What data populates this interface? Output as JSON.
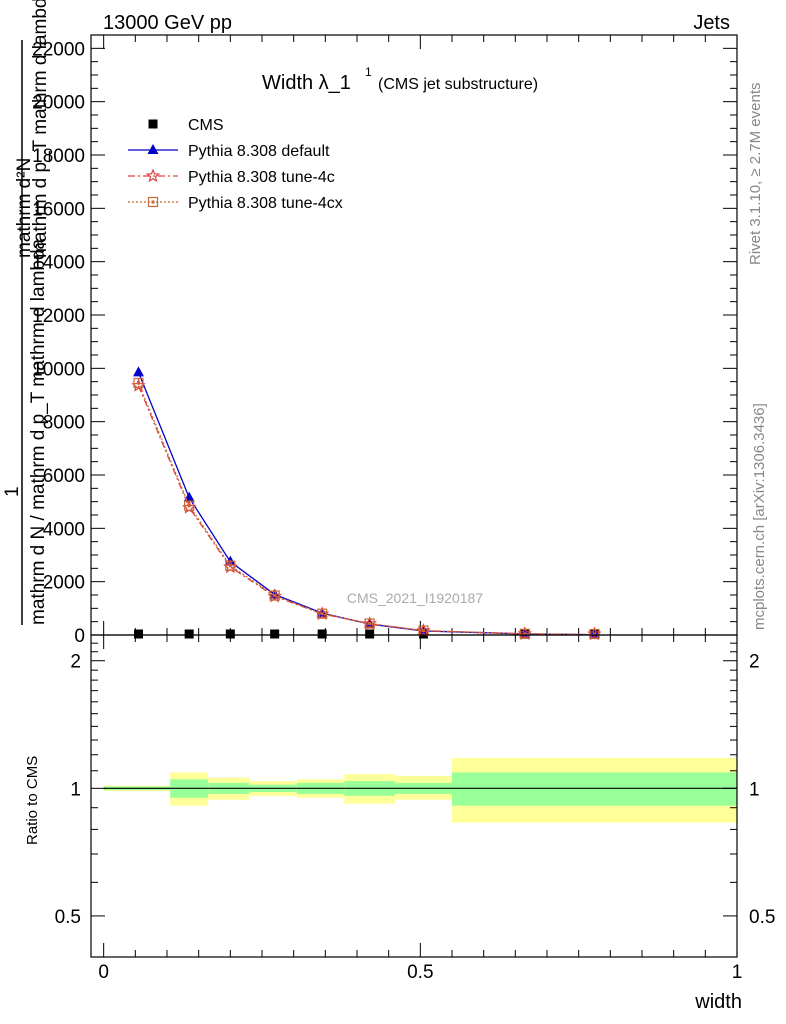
{
  "header": {
    "left": "13000 GeV pp",
    "right": "Jets"
  },
  "side_labels": {
    "rivet": "Rivet 3.1.10, ≥ 2.7M events",
    "mcplots": "mcplots.cern.ch [arXiv:1306.3436]"
  },
  "chart_data": [
    {
      "type": "line",
      "title": "Width λ_1",
      "title_sup": "1",
      "subtitle": "(CMS jet substructure)",
      "watermark": "CMS_2021_I1920187",
      "ylabel_top": "mathrm d²N",
      "ylabel_top_sub": "mathrm d p_T mathrm d lambda",
      "ylabel_bottom_num": "1",
      "ylabel_bottom_den": "mathrm d N / mathrm d p_T mathrm d lambda",
      "xlim": [
        -0.02,
        1.0
      ],
      "ylim": [
        0,
        22500
      ],
      "yticks": [
        0,
        2000,
        4000,
        6000,
        8000,
        10000,
        12000,
        14000,
        16000,
        18000,
        20000,
        22000
      ],
      "ytick_labels": [
        "0",
        "2000",
        "4000",
        "6000",
        "8000",
        "10000",
        "12000",
        "14000",
        "16000",
        "18000",
        "20000",
        "22000"
      ],
      "legend_position": "top-left",
      "series": [
        {
          "name": "CMS",
          "color": "#000000",
          "marker": "square",
          "x": [
            0.055,
            0.135,
            0.2,
            0.27,
            0.345,
            0.42,
            0.505,
            0.665,
            0.775
          ],
          "y": [
            0,
            0,
            0,
            0,
            0,
            0,
            0,
            0,
            0
          ]
        },
        {
          "name": "Pythia 8.308 default",
          "color": "#0000cc",
          "marker": "triangle",
          "x": [
            0.055,
            0.135,
            0.2,
            0.27,
            0.345,
            0.42,
            0.505,
            0.665,
            0.775
          ],
          "y": [
            9850,
            5150,
            2750,
            1520,
            820,
            410,
            150,
            40,
            10
          ]
        },
        {
          "name": "Pythia 8.308 tune-4c",
          "color": "#dd4444",
          "marker": "star",
          "x": [
            0.055,
            0.135,
            0.2,
            0.27,
            0.345,
            0.42,
            0.505,
            0.665,
            0.775
          ],
          "y": [
            9350,
            4780,
            2550,
            1450,
            790,
            420,
            160,
            45,
            10
          ]
        },
        {
          "name": "Pythia 8.308 tune-4cx",
          "color": "#cc6633",
          "marker": "square-open",
          "x": [
            0.055,
            0.135,
            0.2,
            0.27,
            0.345,
            0.42,
            0.505,
            0.665,
            0.775
          ],
          "y": [
            9450,
            4850,
            2600,
            1480,
            800,
            430,
            165,
            45,
            10
          ]
        }
      ]
    },
    {
      "type": "area",
      "ylabel": "Ratio to CMS",
      "xlabel": "width",
      "xlim": [
        -0.02,
        1.0
      ],
      "ylim": [
        0.4,
        2.3
      ],
      "log_scale_y": true,
      "yticks": [
        0.5,
        1,
        2
      ],
      "ytick_labels": [
        "0.5",
        "1",
        "2"
      ],
      "xticks": [
        0,
        0.5,
        1
      ],
      "xtick_labels": [
        "0",
        "0.5",
        "1"
      ],
      "bands": {
        "edges": [
          0.0,
          0.105,
          0.165,
          0.23,
          0.305,
          0.38,
          0.46,
          0.55,
          1.0
        ],
        "inner_lo": [
          0.99,
          0.95,
          0.97,
          0.98,
          0.97,
          0.96,
          0.97,
          0.91
        ],
        "inner_hi": [
          1.01,
          1.05,
          1.03,
          1.02,
          1.03,
          1.04,
          1.03,
          1.09
        ],
        "outer_lo": [
          0.985,
          0.91,
          0.94,
          0.96,
          0.95,
          0.92,
          0.94,
          0.83
        ],
        "outer_hi": [
          1.015,
          1.09,
          1.06,
          1.04,
          1.05,
          1.08,
          1.07,
          1.18
        ],
        "inner_color": "#99ff99",
        "outer_color": "#ffff99"
      }
    }
  ]
}
